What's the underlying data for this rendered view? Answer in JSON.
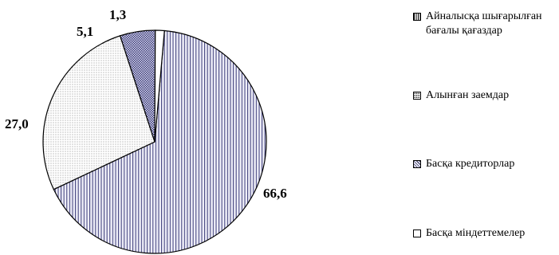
{
  "chart_data": {
    "type": "pie",
    "title": "",
    "start_angle_deg": 85,
    "slices": [
      {
        "label": "Айналысқа шығарылған бағалы қағаздар",
        "value": 66.6,
        "value_label": "66,6",
        "pattern": "vlines"
      },
      {
        "label": "Алынған заемдар",
        "value": 27.0,
        "value_label": "27,0",
        "pattern": "dots"
      },
      {
        "label": "Басқа кредиторлар",
        "value": 5.1,
        "value_label": "5,1",
        "pattern": "check"
      },
      {
        "label": "Басқа міндеттемелер",
        "value": 1.3,
        "value_label": "1,3",
        "pattern": "white"
      }
    ],
    "legend_position": "right",
    "colors": {
      "stroke": "#000000",
      "hatch": "#3a3a78",
      "fill_light": "#eeeef8"
    }
  },
  "legend": {
    "items": [
      {
        "label": "Айналысқа шығарылған бағалы қағаздар",
        "icon": "vertical-lines-swatch"
      },
      {
        "label": "Алынған заемдар",
        "icon": "dotted-swatch"
      },
      {
        "label": "Басқа кредиторлар",
        "icon": "checkered-swatch"
      },
      {
        "label": "Басқа міндеттемелер",
        "icon": "white-swatch"
      }
    ]
  }
}
